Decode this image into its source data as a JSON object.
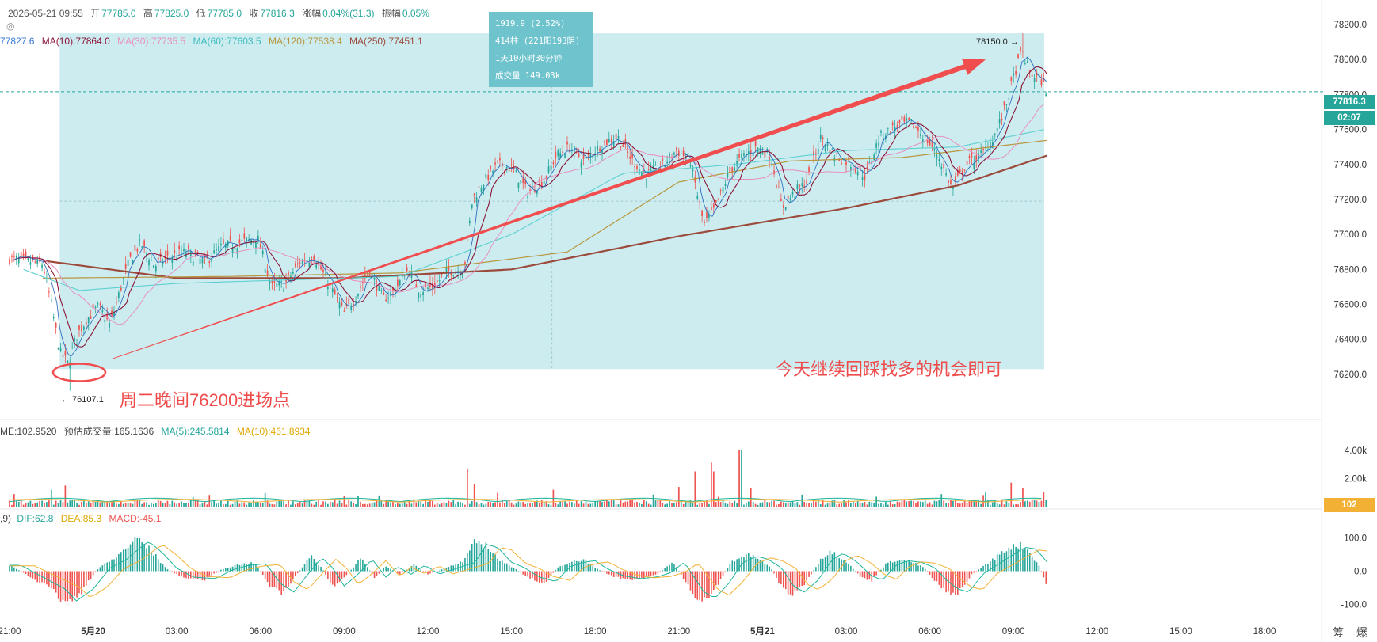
{
  "ohlc_bar": {
    "datetime": "2026-05-21 09:55",
    "open_label": "开",
    "open": "77785.0",
    "high_label": "高",
    "high": "77825.0",
    "low_label": "低",
    "low": "77785.0",
    "close_label": "收",
    "close": "77816.3",
    "change_label": "涨幅",
    "change": "0.04%(31.3)",
    "amp_label": "振幅",
    "amp": "0.05%"
  },
  "ma_bar": {
    "first": "77827.6",
    "ma10": "MA(10):77864.0",
    "ma30": "MA(30):77735.5",
    "ma60": "MA(60):77603.5",
    "ma120": "MA(120):77538.4",
    "ma250": "MA(250):77451.1"
  },
  "volume_bar": {
    "me": "ME:102.9520",
    "est": "预估成交量:165.1636",
    "ma5": "MA(5):245.5814",
    "ma10": "MA(10):461.8934"
  },
  "macd_bar": {
    "prefix": ",9)",
    "dif": "DIF:62.8",
    "dea": "DEA:85.3",
    "macd": "MACD:-45.1"
  },
  "measure_tooltip": {
    "line1": "1919.9 (2.52%)",
    "line2": "414柱 (221阳193阴)",
    "line3": "1天10小时30分钟",
    "line4": "成交量 149.03k"
  },
  "price_tags": {
    "current": "77816.3",
    "countdown": "02:07",
    "volume": "102"
  },
  "extremes": {
    "high_label": "78150.0 →",
    "low_label": "← 76107.1"
  },
  "annotations": {
    "entry": "周二晚间76200进场点",
    "plan": "今天继续回踩找多的机会即可"
  },
  "corner_label": "筹 爆",
  "colors": {
    "up": "#26a69a",
    "down": "#ef5350",
    "box": "#cdecf0",
    "tooltip": "#6ec3cd",
    "arrow": "#f04e4e",
    "ma10": "#8b1538",
    "ma30": "#e88fbf",
    "ma60": "#5fd0d0",
    "ma120": "#b8963c",
    "ma250": "#9b4a3c",
    "dif": "#1fb59a",
    "dea": "#f2b134"
  },
  "chart_data": [
    {
      "type": "candlestick",
      "title": "",
      "ylim": [
        76100,
        78250
      ],
      "price_ticks": [
        78200,
        78000,
        77800,
        77600,
        77400,
        77200,
        77000,
        76800,
        76600,
        76400,
        76200
      ],
      "price_tick_labels": [
        "78200.0",
        "78000.0",
        "77800.0",
        "77600.0",
        "77400.0",
        "77200.0",
        "77000.0",
        "76800.0",
        "76600.0",
        "76400.0",
        "76200.0"
      ],
      "time_ticks": [
        "21:00",
        "5月20",
        "03:00",
        "06:00",
        "09:00",
        "12:00",
        "15:00",
        "18:00",
        "21:00",
        "5月21",
        "03:00",
        "06:00",
        "09:00",
        "12:00",
        "15:00",
        "18:00"
      ],
      "time_hours": [
        0,
        3,
        6,
        9,
        12,
        15,
        18,
        21,
        24,
        27,
        30,
        33,
        36,
        39,
        42,
        45
      ],
      "data_end_hour": 37.2,
      "current_price": 77816.3,
      "high": 78150.0,
      "low": 76107.1,
      "measure_range": {
        "from_hour": 1.8,
        "to_hour": 37.1,
        "from_price": 76230,
        "to_price": 78150
      },
      "trend_arrow": {
        "from": [
          3.7,
          76290
        ],
        "to": [
          35.0,
          78000
        ]
      },
      "entry_marker": {
        "hour": 2.5,
        "price": 76220
      },
      "close_path": [
        [
          0,
          76860
        ],
        [
          0.6,
          76850
        ],
        [
          1.2,
          76830
        ],
        [
          1.5,
          76600
        ],
        [
          1.8,
          76330
        ],
        [
          2.1,
          76260
        ],
        [
          2.4,
          76420
        ],
        [
          2.8,
          76520
        ],
        [
          3.2,
          76590
        ],
        [
          3.6,
          76480
        ],
        [
          4.0,
          76700
        ],
        [
          4.3,
          76850
        ],
        [
          4.7,
          76950
        ],
        [
          5.2,
          76820
        ],
        [
          5.7,
          76870
        ],
        [
          6.3,
          76900
        ],
        [
          7.0,
          76840
        ],
        [
          7.6,
          76930
        ],
        [
          8.2,
          76950
        ],
        [
          8.9,
          76980
        ],
        [
          9.4,
          76700
        ],
        [
          9.9,
          76720
        ],
        [
          10.4,
          76840
        ],
        [
          10.9,
          76880
        ],
        [
          11.4,
          76730
        ],
        [
          12.0,
          76550
        ],
        [
          12.4,
          76640
        ],
        [
          12.9,
          76800
        ],
        [
          13.4,
          76630
        ],
        [
          13.8,
          76680
        ],
        [
          14.3,
          76800
        ],
        [
          14.7,
          76680
        ],
        [
          15.2,
          76700
        ],
        [
          15.7,
          76790
        ],
        [
          16.3,
          76800
        ],
        [
          16.6,
          77200
        ],
        [
          17.0,
          77300
        ],
        [
          17.5,
          77400
        ],
        [
          18.0,
          77380
        ],
        [
          18.6,
          77240
        ],
        [
          19.2,
          77320
        ],
        [
          19.6,
          77450
        ],
        [
          20.1,
          77500
        ],
        [
          20.6,
          77420
        ],
        [
          21.2,
          77510
        ],
        [
          21.8,
          77560
        ],
        [
          22.3,
          77430
        ],
        [
          22.8,
          77340
        ],
        [
          23.4,
          77390
        ],
        [
          23.9,
          77480
        ],
        [
          24.4,
          77430
        ],
        [
          24.9,
          77050
        ],
        [
          25.3,
          77150
        ],
        [
          25.8,
          77350
        ],
        [
          26.3,
          77450
        ],
        [
          26.8,
          77500
        ],
        [
          27.3,
          77450
        ],
        [
          27.7,
          77150
        ],
        [
          28.2,
          77250
        ],
        [
          28.6,
          77300
        ],
        [
          29.1,
          77560
        ],
        [
          29.6,
          77450
        ],
        [
          30.2,
          77400
        ],
        [
          30.7,
          77330
        ],
        [
          31.2,
          77560
        ],
        [
          31.8,
          77620
        ],
        [
          32.3,
          77640
        ],
        [
          32.8,
          77560
        ],
        [
          33.3,
          77450
        ],
        [
          33.8,
          77260
        ],
        [
          34.3,
          77400
        ],
        [
          34.8,
          77450
        ],
        [
          35.3,
          77560
        ],
        [
          35.7,
          77720
        ],
        [
          36.0,
          77900
        ],
        [
          36.3,
          78050
        ],
        [
          36.6,
          77920
        ],
        [
          37.0,
          77880
        ],
        [
          37.2,
          77816
        ]
      ],
      "ma_series": [
        {
          "name": "MA(250)",
          "values": [
            [
              1.2,
              76850
            ],
            [
              6,
              76750
            ],
            [
              12,
              76750
            ],
            [
              18,
              76800
            ],
            [
              24,
              76990
            ],
            [
              30,
              77150
            ],
            [
              34,
              77280
            ],
            [
              37.2,
              77451
            ]
          ]
        },
        {
          "name": "MA(120)",
          "values": [
            [
              1.2,
              76750
            ],
            [
              8,
              76760
            ],
            [
              14,
              76780
            ],
            [
              20,
              76900
            ],
            [
              24,
              77300
            ],
            [
              28,
              77420
            ],
            [
              32,
              77440
            ],
            [
              37.2,
              77538
            ]
          ]
        },
        {
          "name": "MA(60)",
          "values": [
            [
              0.5,
              76800
            ],
            [
              2.5,
              76680
            ],
            [
              6,
              76720
            ],
            [
              10,
              76740
            ],
            [
              14,
              76760
            ],
            [
              18,
              77000
            ],
            [
              22,
              77350
            ],
            [
              26,
              77400
            ],
            [
              30,
              77480
            ],
            [
              34,
              77500
            ],
            [
              37.2,
              77603
            ]
          ]
        }
      ]
    },
    {
      "type": "bar",
      "title": "",
      "ylim": [
        0,
        5000
      ],
      "ticks": [
        4000,
        2000
      ],
      "tick_labels": [
        "4.00k",
        "2.00k"
      ],
      "spikes": [
        [
          1.5,
          1200
        ],
        [
          2.0,
          1500
        ],
        [
          16.4,
          2700
        ],
        [
          16.7,
          1600
        ],
        [
          19.5,
          1200
        ],
        [
          24.0,
          1400
        ],
        [
          24.6,
          2500
        ],
        [
          25.2,
          2500
        ],
        [
          26.2,
          4000
        ],
        [
          26.6,
          1300
        ],
        [
          35.9,
          1700
        ],
        [
          36.3,
          1350
        ]
      ]
    },
    {
      "type": "bar",
      "title": "",
      "ylim": [
        -140,
        140
      ],
      "ticks": [
        100,
        0,
        -100
      ],
      "tick_labels": [
        "100.0",
        "0.0",
        "-100.0"
      ],
      "hist_path": [
        [
          0,
          20
        ],
        [
          0.8,
          -20
        ],
        [
          1.6,
          -60
        ],
        [
          2.0,
          -100
        ],
        [
          2.6,
          -60
        ],
        [
          3.2,
          10
        ],
        [
          3.8,
          40
        ],
        [
          4.3,
          80
        ],
        [
          4.6,
          100
        ],
        [
          5.1,
          60
        ],
        [
          5.6,
          10
        ],
        [
          6.2,
          -20
        ],
        [
          7.0,
          -25
        ],
        [
          7.6,
          5
        ],
        [
          8.2,
          20
        ],
        [
          8.8,
          25
        ],
        [
          9.3,
          -40
        ],
        [
          9.8,
          -70
        ],
        [
          10.3,
          -10
        ],
        [
          10.8,
          45
        ],
        [
          11.2,
          10
        ],
        [
          11.6,
          -50
        ],
        [
          12.1,
          -10
        ],
        [
          12.6,
          40
        ],
        [
          13.1,
          -20
        ],
        [
          13.5,
          15
        ],
        [
          14.0,
          -10
        ],
        [
          14.5,
          20
        ],
        [
          15.0,
          -10
        ],
        [
          15.5,
          5
        ],
        [
          16.3,
          30
        ],
        [
          16.7,
          90
        ],
        [
          17.1,
          80
        ],
        [
          17.6,
          30
        ],
        [
          18.1,
          10
        ],
        [
          18.6,
          -20
        ],
        [
          19.2,
          -35
        ],
        [
          19.7,
          15
        ],
        [
          20.2,
          30
        ],
        [
          20.6,
          35
        ],
        [
          21.0,
          10
        ],
        [
          21.6,
          -15
        ],
        [
          22.2,
          -25
        ],
        [
          22.8,
          -20
        ],
        [
          23.3,
          -5
        ],
        [
          23.8,
          30
        ],
        [
          24.5,
          -70
        ],
        [
          24.9,
          -90
        ],
        [
          25.4,
          -40
        ],
        [
          25.9,
          30
        ],
        [
          26.4,
          50
        ],
        [
          26.8,
          40
        ],
        [
          27.3,
          10
        ],
        [
          27.7,
          -50
        ],
        [
          28.1,
          -70
        ],
        [
          28.6,
          -30
        ],
        [
          29.1,
          40
        ],
        [
          29.5,
          60
        ],
        [
          30.0,
          30
        ],
        [
          30.5,
          -15
        ],
        [
          30.9,
          -30
        ],
        [
          31.4,
          20
        ],
        [
          31.8,
          35
        ],
        [
          32.3,
          30
        ],
        [
          32.8,
          10
        ],
        [
          33.2,
          -30
        ],
        [
          33.6,
          -60
        ],
        [
          34.0,
          -70
        ],
        [
          34.5,
          -10
        ],
        [
          35.0,
          20
        ],
        [
          35.5,
          50
        ],
        [
          36.0,
          80
        ],
        [
          36.4,
          75
        ],
        [
          36.9,
          20
        ],
        [
          37.2,
          -45
        ]
      ]
    }
  ]
}
